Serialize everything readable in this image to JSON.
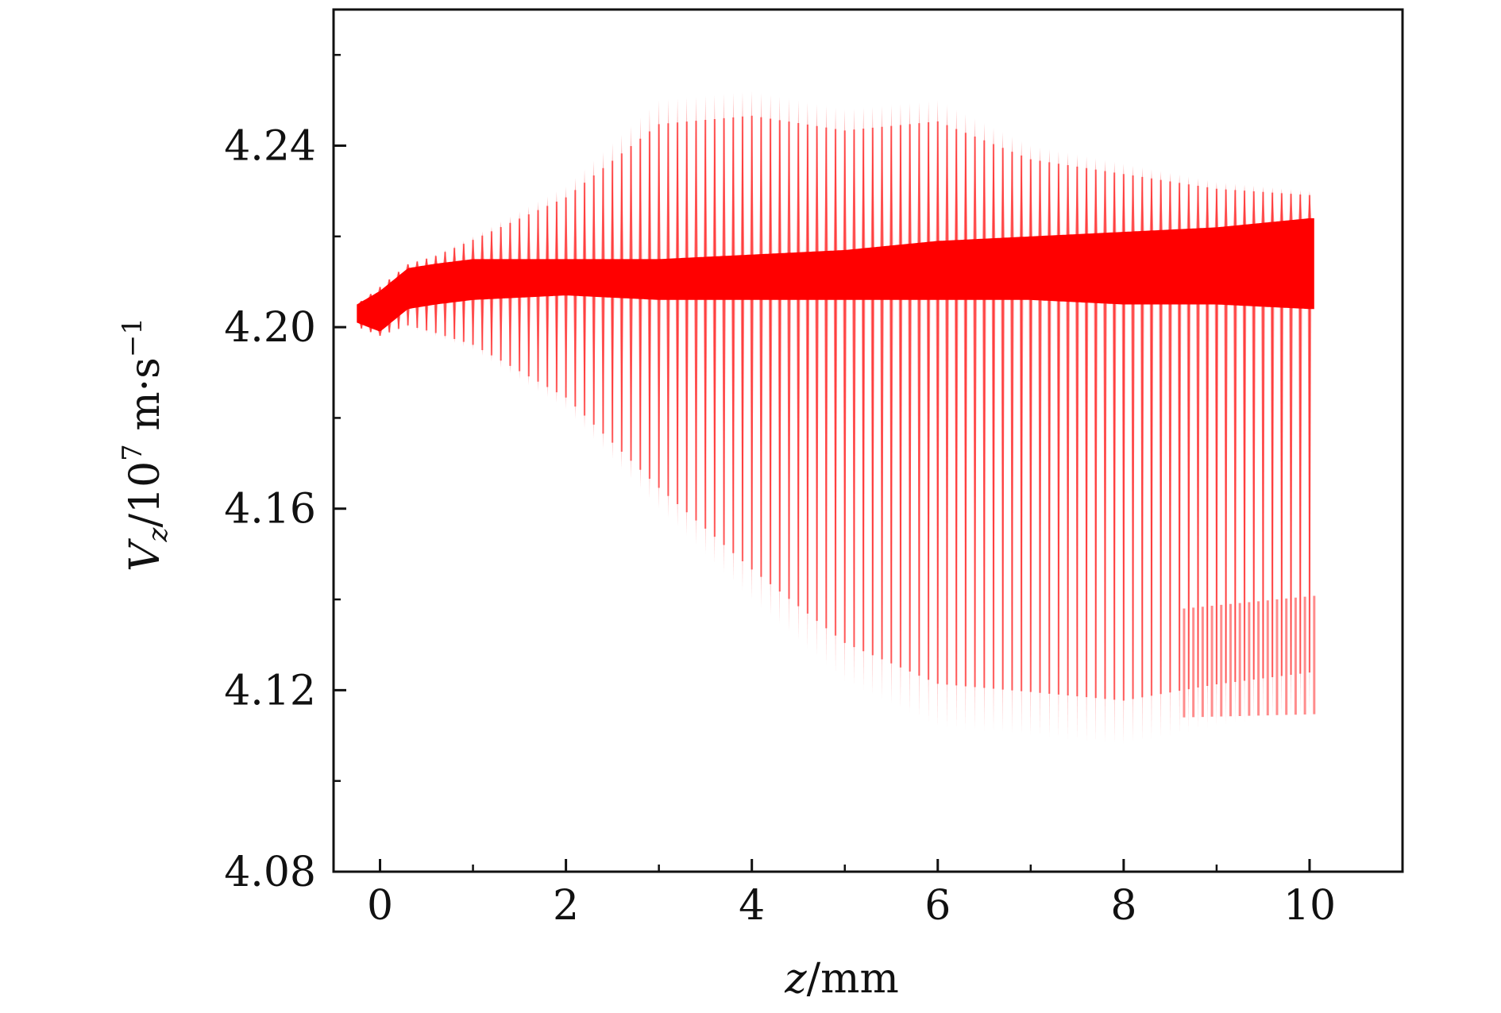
{
  "chart_data": {
    "type": "scatter",
    "xlabel": {
      "var": "z",
      "unit": "/mm"
    },
    "ylabel": {
      "var": "V",
      "sub": "z",
      "base": "/10",
      "exp": "7",
      "unit": " m·s",
      "unit_exp": "−1"
    },
    "xlim": [
      -0.5,
      11
    ],
    "ylim": [
      4.08,
      4.27
    ],
    "x_ticks": [
      0,
      2,
      4,
      6,
      8,
      10
    ],
    "x_tick_labels": [
      "0",
      "2",
      "4",
      "6",
      "8",
      "10"
    ],
    "y_ticks": [
      4.08,
      4.12,
      4.16,
      4.2,
      4.24
    ],
    "y_tick_labels": [
      "4.08",
      "4.12",
      "4.16",
      "4.20",
      "4.24"
    ],
    "x_minor_step": 1,
    "y_minor_step": 0.02,
    "grid": false,
    "legend": "none",
    "color": "#ff0000",
    "band_period_mm": 0.1,
    "z_range": [
      -0.25,
      10.05
    ],
    "envelope": {
      "z": [
        -0.25,
        0,
        0.3,
        0.6,
        1,
        2,
        3,
        4,
        5,
        6,
        7,
        8,
        9,
        10,
        10.05
      ],
      "core_upper": [
        4.205,
        4.208,
        4.213,
        4.214,
        4.215,
        4.215,
        4.215,
        4.216,
        4.217,
        4.219,
        4.22,
        4.221,
        4.222,
        4.224,
        4.224
      ],
      "core_lower": [
        4.201,
        4.199,
        4.204,
        4.205,
        4.206,
        4.207,
        4.206,
        4.206,
        4.206,
        4.206,
        4.206,
        4.205,
        4.205,
        4.204,
        4.204
      ],
      "outer_upper": [
        4.205,
        4.209,
        4.214,
        4.216,
        4.22,
        4.231,
        4.25,
        4.252,
        4.248,
        4.25,
        4.24,
        4.236,
        4.232,
        4.23,
        4.23
      ],
      "outer_lower": [
        4.2,
        4.198,
        4.2,
        4.198,
        4.195,
        4.182,
        4.16,
        4.14,
        4.122,
        4.112,
        4.11,
        4.108,
        4.112,
        4.115,
        4.115
      ]
    }
  }
}
